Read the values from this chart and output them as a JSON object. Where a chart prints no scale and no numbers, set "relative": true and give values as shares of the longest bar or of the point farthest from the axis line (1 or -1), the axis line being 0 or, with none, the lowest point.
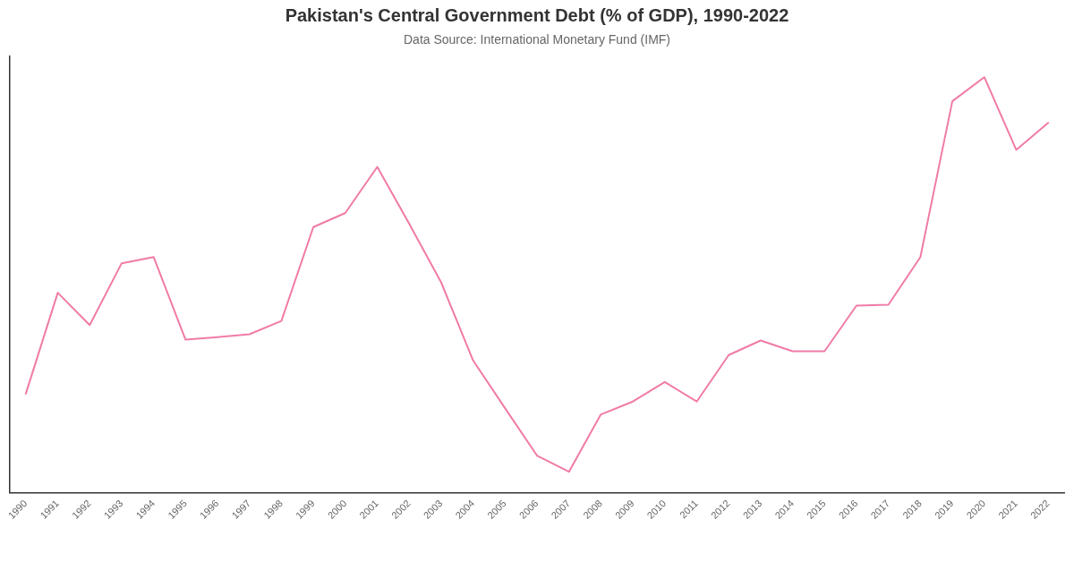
{
  "chart_data": {
    "type": "line",
    "title": "Pakistan's Central Government Debt (% of GDP), 1990-2022",
    "subtitle": "Data Source: International Monetary Fund (IMF)",
    "categories": [
      "1990",
      "1991",
      "1992",
      "1993",
      "1994",
      "1995",
      "1996",
      "1997",
      "1998",
      "1999",
      "2000",
      "2001",
      "2002",
      "2003",
      "2004",
      "2005",
      "2006",
      "2007",
      "2008",
      "2009",
      "2010",
      "2011",
      "2012",
      "2013",
      "2014",
      "2015",
      "2016",
      "2017",
      "2018",
      "2019",
      "2020",
      "2021",
      "2022"
    ],
    "values": [
      0.238,
      0.481,
      0.403,
      0.552,
      0.567,
      0.368,
      0.374,
      0.381,
      0.413,
      0.639,
      0.673,
      0.784,
      0.647,
      0.506,
      0.318,
      0.203,
      0.089,
      0.05,
      0.188,
      0.219,
      0.266,
      0.219,
      0.331,
      0.366,
      0.34,
      0.34,
      0.45,
      0.452,
      0.567,
      0.942,
      1,
      0.825,
      0.89
    ],
    "color": "#f07ba7",
    "relative": true,
    "marker": "none",
    "line_style": "solid"
  }
}
